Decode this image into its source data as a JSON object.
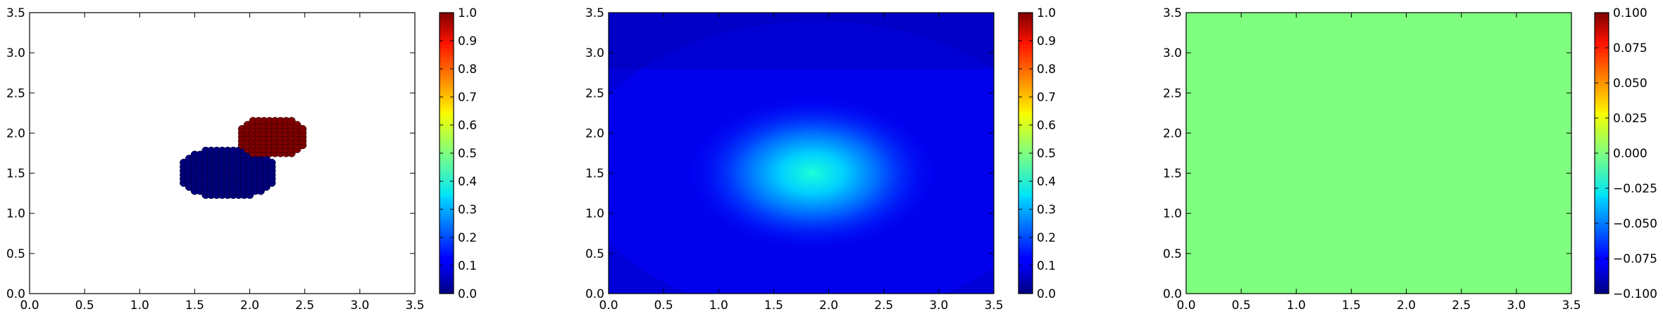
{
  "chart_data": [
    {
      "type": "scatter",
      "xlim": [
        0,
        3.5
      ],
      "ylim": [
        0,
        3.5
      ],
      "xticks": [
        "0.0",
        "0.5",
        "1.0",
        "1.5",
        "2.0",
        "2.5",
        "3.0",
        "3.5"
      ],
      "yticks": [
        "0.0",
        "0.5",
        "1.0",
        "1.5",
        "2.0",
        "2.5",
        "3.0",
        "3.5"
      ],
      "grid": false,
      "colorbar": {
        "colormap": "jet",
        "range": [
          0,
          1
        ],
        "ticks": [
          "0.0",
          "0.1",
          "0.2",
          "0.3",
          "0.4",
          "0.5",
          "0.6",
          "0.7",
          "0.8",
          "0.9",
          "1.0"
        ]
      },
      "series": [
        {
          "value": 0.0,
          "color": "#00007f",
          "center": [
            1.8,
            1.5
          ],
          "radius": [
            0.45,
            0.32
          ]
        },
        {
          "value": 1.0,
          "color": "#7f0000",
          "center": [
            2.2,
            1.95
          ],
          "radius": [
            0.32,
            0.25
          ]
        }
      ]
    },
    {
      "type": "heatmap",
      "xlim": [
        0,
        3.5
      ],
      "ylim": [
        0,
        3.5
      ],
      "xticks": [
        "0.0",
        "0.5",
        "1.0",
        "1.5",
        "2.0",
        "2.5",
        "3.0",
        "3.5"
      ],
      "yticks": [
        "0.0",
        "0.5",
        "1.0",
        "1.5",
        "2.0",
        "2.5",
        "3.0",
        "3.5"
      ],
      "grid": false,
      "colorbar": {
        "colormap": "jet",
        "range": [
          0,
          1
        ],
        "ticks": [
          "0.0",
          "0.1",
          "0.2",
          "0.3",
          "0.4",
          "0.5",
          "0.6",
          "0.7",
          "0.8",
          "0.9",
          "1.0"
        ]
      },
      "peak": {
        "x": 1.85,
        "y": 1.5,
        "value": 0.42
      },
      "background_value": 0.08
    },
    {
      "type": "heatmap",
      "xlim": [
        0,
        3.5
      ],
      "ylim": [
        0,
        3.5
      ],
      "xticks": [
        "0.0",
        "0.5",
        "1.0",
        "1.5",
        "2.0",
        "2.5",
        "3.0",
        "3.5"
      ],
      "yticks": [
        "0.0",
        "0.5",
        "1.0",
        "1.5",
        "2.0",
        "2.5",
        "3.0",
        "3.5"
      ],
      "grid": false,
      "uniform_value": 0.0,
      "fill_color": "#7fff7f",
      "colorbar": {
        "colormap": "jet",
        "range": [
          -0.1,
          0.1
        ],
        "ticks": [
          "−0.100",
          "−0.075",
          "−0.050",
          "−0.025",
          "0.000",
          "0.025",
          "0.050",
          "0.075",
          "0.100"
        ]
      }
    }
  ]
}
